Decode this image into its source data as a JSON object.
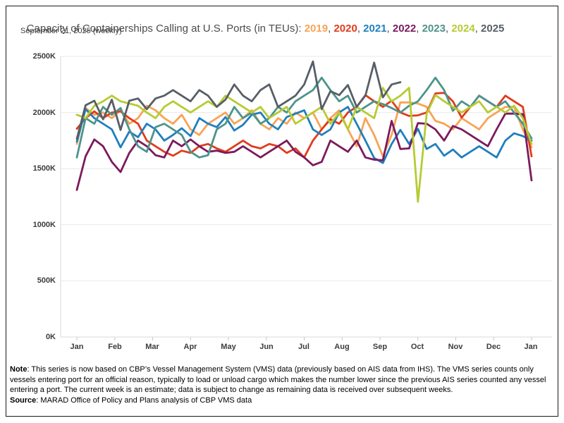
{
  "header": {
    "title_prefix": "Capacity of Containerships Calling at U.S. Ports (in TEUs): ",
    "year_separator": ", ",
    "years": [
      {
        "label": "2019",
        "color": "#F7A456"
      },
      {
        "label": "2020",
        "color": "#E03B1C"
      },
      {
        "label": "2021",
        "color": "#1F7FBC"
      },
      {
        "label": "2022",
        "color": "#7C1A5D"
      },
      {
        "label": "2023",
        "color": "#4C948C"
      },
      {
        "label": "2024",
        "color": "#B7CB33"
      },
      {
        "label": "2025",
        "color": "#575E66"
      }
    ],
    "subtitle": "September 21, 2025 (weekly)"
  },
  "chart_data": {
    "type": "line",
    "title": "Capacity of Containerships Calling at U.S. Ports (in TEUs)",
    "subtitle": "September 21, 2025 (weekly)",
    "unit": "thousand TEUs (K)",
    "x_frequency": "weekly",
    "grid": "horizontal",
    "legend_position": "in-title",
    "x_axis": {
      "tick_labels": [
        "Jan",
        "Feb",
        "Mar",
        "Apr",
        "May",
        "Jun",
        "Jul",
        "Aug",
        "Sep",
        "Oct",
        "Nov",
        "Dec",
        "Jan"
      ]
    },
    "y_axis": {
      "tick_labels": [
        "0K",
        "500K",
        "1000K",
        "1500K",
        "2000K",
        "2500K"
      ],
      "tick_values": [
        0,
        500,
        1000,
        1500,
        2000,
        2500
      ],
      "ylim": [
        0,
        2500
      ]
    },
    "series": [
      {
        "name": "2019",
        "color": "#F7A456",
        "values": [
          1720,
          2040,
          1980,
          2000,
          1950,
          2020,
          1900,
          1950,
          2060,
          2020,
          1950,
          1900,
          1980,
          1850,
          1800,
          1900,
          1950,
          2000,
          1900,
          1950,
          2020,
          1900,
          1850,
          1950,
          1900,
          2000,
          1950,
          2000,
          1850,
          1950,
          2020,
          1850,
          1700,
          1950,
          1800,
          1610,
          1800,
          2090,
          2090,
          2080,
          2050,
          1925,
          1900,
          1850,
          1950,
          1900,
          1850,
          1950,
          2000,
          2050,
          2050,
          1850,
          1690
        ]
      },
      {
        "name": "2020",
        "color": "#E03B1C",
        "values": [
          1855,
          1950,
          2010,
          1950,
          2000,
          2010,
          1950,
          1900,
          1750,
          1700,
          1650,
          1615,
          1660,
          1640,
          1700,
          1720,
          1680,
          1650,
          1700,
          1750,
          1700,
          1680,
          1720,
          1700,
          1640,
          1680,
          1600,
          1750,
          1850,
          1940,
          1900,
          2000,
          2050,
          2155,
          2100,
          2050,
          2105,
          2000,
          1970,
          1975,
          2000,
          2170,
          2175,
          2100,
          1955,
          2050,
          2150,
          2100,
          2050,
          2150,
          2100,
          2050,
          1610
        ]
      },
      {
        "name": "2021",
        "color": "#1F7FBC",
        "values": [
          1740,
          2030,
          1950,
          1900,
          1850,
          1690,
          1830,
          1780,
          1900,
          1850,
          1750,
          1800,
          1860,
          1790,
          1950,
          1900,
          1870,
          1960,
          1840,
          1890,
          1980,
          2000,
          1900,
          1850,
          1960,
          1990,
          2020,
          1850,
          1800,
          1850,
          2000,
          2050,
          1900,
          1750,
          1595,
          1550,
          1720,
          1845,
          1720,
          1855,
          1675,
          1720,
          1615,
          1670,
          1600,
          1650,
          1700,
          1650,
          1600,
          1750,
          1815,
          1790,
          1750
        ]
      },
      {
        "name": "2022",
        "color": "#7C1A5D",
        "values": [
          1310,
          1610,
          1760,
          1700,
          1560,
          1470,
          1640,
          1750,
          1700,
          1620,
          1600,
          1750,
          1700,
          1760,
          1700,
          1650,
          1660,
          1640,
          1650,
          1700,
          1650,
          1600,
          1650,
          1700,
          1750,
          1650,
          1600,
          1530,
          1560,
          1750,
          1700,
          1650,
          1750,
          1600,
          1580,
          1575,
          1925,
          1675,
          1680,
          1905,
          1900,
          1850,
          1750,
          1880,
          1850,
          1800,
          1750,
          1700,
          1850,
          1990,
          1990,
          1985,
          1395
        ]
      },
      {
        "name": "2023",
        "color": "#4C948C",
        "values": [
          1600,
          1950,
          1900,
          2050,
          1980,
          2040,
          1850,
          1700,
          1650,
          1870,
          1900,
          1850,
          1800,
          1650,
          1600,
          1620,
          1850,
          1900,
          2050,
          1950,
          2000,
          1900,
          1950,
          2050,
          2000,
          2100,
          2150,
          2200,
          2310,
          2200,
          2100,
          2150,
          2000,
          2050,
          2100,
          2075,
          2040,
          2000,
          2060,
          2100,
          2200,
          2310,
          2200,
          2015,
          2100,
          2050,
          2150,
          2100,
          2050,
          2100,
          2000,
          1900,
          1770
        ]
      },
      {
        "name": "2024",
        "color": "#B7CB33",
        "values": [
          1980,
          1950,
          2060,
          2100,
          2150,
          2100,
          2080,
          2060,
          2000,
          1950,
          2050,
          2100,
          2050,
          2000,
          2050,
          2100,
          2050,
          2150,
          2100,
          2050,
          2000,
          2050,
          1950,
          2000,
          2050,
          1900,
          1950,
          2000,
          2050,
          1900,
          2000,
          1850,
          2050,
          2000,
          1950,
          2220,
          2100,
          2150,
          2220,
          1205,
          1990,
          2155,
          2100,
          2050,
          2000,
          2050,
          2100,
          2000,
          2050,
          2000,
          2060,
          1950,
          1720
        ]
      },
      {
        "name": "2025",
        "color": "#575E66",
        "values": [
          1765,
          2065,
          2105,
          1940,
          2115,
          1845,
          2105,
          2125,
          2030,
          2125,
          2150,
          2200,
          2150,
          2100,
          2200,
          2150,
          2050,
          2115,
          2250,
          2150,
          2100,
          2200,
          2250,
          2050,
          2100,
          2150,
          2250,
          2455,
          2030,
          2190,
          2155,
          2245,
          2050,
          2150,
          2445,
          2135,
          2250,
          2270
        ]
      }
    ]
  },
  "footer": {
    "note_label": "Note",
    "note_text": ": This series is now based on CBP’s Vessel Management System (VMS) data (previously based on AIS data from IHS). The VMS series counts only vessels entering port for an official reason, typically to load or unload cargo which makes the number lower since the previous AIS series counted any vessel entering a port. The current week is an estimate; data is subject to change as remaining data is received over subsequent weeks.",
    "source_label": "Source",
    "source_text": ": MARAD Office of Policy and Plans analysis of CBP VMS data"
  }
}
